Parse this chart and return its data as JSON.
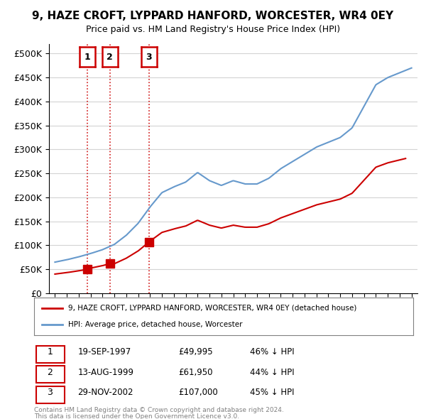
{
  "title": "9, HAZE CROFT, LYPPARD HANFORD, WORCESTER, WR4 0EY",
  "subtitle": "Price paid vs. HM Land Registry's House Price Index (HPI)",
  "purchases": [
    {
      "date_num": 1997.72,
      "price": 49995,
      "label": "1",
      "date_str": "19-SEP-1997",
      "pct": "46% ↓ HPI"
    },
    {
      "date_num": 1999.62,
      "price": 61950,
      "label": "2",
      "date_str": "13-AUG-1999",
      "pct": "44% ↓ HPI"
    },
    {
      "date_num": 2002.91,
      "price": 107000,
      "label": "3",
      "date_str": "29-NOV-2002",
      "pct": "45% ↓ HPI"
    }
  ],
  "legend_entry1": "9, HAZE CROFT, LYPPARD HANFORD, WORCESTER, WR4 0EY (detached house)",
  "legend_entry2": "HPI: Average price, detached house, Worcester",
  "footer1": "Contains HM Land Registry data © Crown copyright and database right 2024.",
  "footer2": "This data is licensed under the Open Government Licence v3.0.",
  "red_color": "#cc0000",
  "blue_color": "#6699cc",
  "ylim": [
    0,
    520000
  ],
  "yticks": [
    0,
    50000,
    100000,
    150000,
    200000,
    250000,
    300000,
    350000,
    400000,
    450000,
    500000
  ],
  "xlim_start": 1994.5,
  "xlim_end": 2025.5,
  "hpi_knots": [
    [
      1995,
      65000
    ],
    [
      1996,
      70000
    ],
    [
      1997,
      76000
    ],
    [
      1998,
      83000
    ],
    [
      1999,
      91000
    ],
    [
      2000,
      102000
    ],
    [
      2001,
      121000
    ],
    [
      2002,
      146000
    ],
    [
      2003,
      180000
    ],
    [
      2004,
      210000
    ],
    [
      2005,
      222000
    ],
    [
      2006,
      232000
    ],
    [
      2007,
      252000
    ],
    [
      2008,
      235000
    ],
    [
      2009,
      225000
    ],
    [
      2010,
      235000
    ],
    [
      2011,
      228000
    ],
    [
      2012,
      228000
    ],
    [
      2013,
      240000
    ],
    [
      2014,
      260000
    ],
    [
      2015,
      275000
    ],
    [
      2016,
      290000
    ],
    [
      2017,
      305000
    ],
    [
      2018,
      315000
    ],
    [
      2019,
      325000
    ],
    [
      2020,
      345000
    ],
    [
      2021,
      390000
    ],
    [
      2022,
      435000
    ],
    [
      2023,
      450000
    ],
    [
      2024,
      460000
    ],
    [
      2025,
      470000
    ]
  ],
  "table_rows": [
    [
      "1",
      "19-SEP-1997",
      "£49,995",
      "46% ↓ HPI"
    ],
    [
      "2",
      "13-AUG-1999",
      "£61,950",
      "44% ↓ HPI"
    ],
    [
      "3",
      "29-NOV-2002",
      "£107,000",
      "45% ↓ HPI"
    ]
  ]
}
